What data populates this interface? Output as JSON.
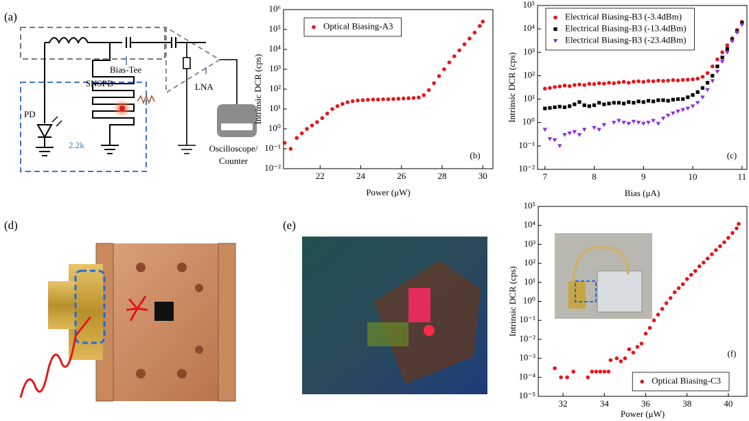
{
  "panel_labels": {
    "a": "(a)",
    "d": "(d)",
    "e": "(e)"
  },
  "diagram": {
    "bias_tee": "Bias-Tee",
    "snspd": "SNSPD",
    "pd": "PD",
    "resistor": "2.2k",
    "lna": "LNA",
    "scope": [
      "Oscilloscope/",
      "Counter"
    ]
  },
  "chart_data": [
    {
      "type": "scatter",
      "panel_label": "(b)",
      "x_label": "Power (μW)",
      "y_label": "Intrinsic DCR (cps)",
      "log_y": true,
      "legend": "upper left",
      "xlim": [
        20.2,
        30.5
      ],
      "xticks": [
        22,
        24,
        26,
        28,
        30
      ],
      "ylim": [
        0.01,
        1000000
      ],
      "yticks": [
        {
          "value": 0.01,
          "label": "10⁻²"
        },
        {
          "value": 0.1,
          "label": "10⁻¹"
        },
        {
          "value": 1,
          "label": "10⁰"
        },
        {
          "value": 10,
          "label": "10¹"
        },
        {
          "value": 100,
          "label": "10²"
        },
        {
          "value": 1000,
          "label": "10³"
        },
        {
          "value": 10000,
          "label": "10⁴"
        },
        {
          "value": 100000,
          "label": "10⁵"
        },
        {
          "value": 1000000,
          "label": "10⁶"
        }
      ],
      "x": [
        20.25,
        20.55,
        20.85,
        21.1,
        21.35,
        21.6,
        21.85,
        22.1,
        22.35,
        22.6,
        22.85,
        23.1,
        23.35,
        23.6,
        23.85,
        24.1,
        24.35,
        24.6,
        24.85,
        25.1,
        25.35,
        25.6,
        25.85,
        26.1,
        26.35,
        26.6,
        26.85,
        27.1,
        27.35,
        27.6,
        27.85,
        28.1,
        28.35,
        28.6,
        28.85,
        29.1,
        29.35,
        29.6,
        29.85,
        30
      ],
      "series": [
        {
          "name": "Optical Biasing-A3",
          "color": "#e8141a",
          "marker": "circle",
          "values": [
            0.2,
            0.1,
            0.35,
            0.6,
            1,
            1.5,
            2.2,
            3.5,
            6,
            10,
            14,
            18,
            22,
            25,
            27,
            28,
            29,
            30,
            30,
            31,
            31,
            32,
            33,
            34,
            35,
            36,
            38,
            50,
            90,
            200,
            450,
            1000,
            2200,
            4500,
            9000,
            18000,
            35000,
            70000,
            150000,
            250000
          ]
        }
      ]
    },
    {
      "type": "scatter",
      "panel_label": "(c)",
      "x_label": "Bias (μA)",
      "y_label": "Intrinsic DCR (cps)",
      "log_y": true,
      "legend": "upper left",
      "xlim": [
        6.85,
        11.1
      ],
      "xticks": [
        7,
        8,
        9,
        10,
        11
      ],
      "ylim": [
        0.01,
        100000
      ],
      "yticks": [
        {
          "value": 0.01,
          "label": "10⁻²"
        },
        {
          "value": 0.1,
          "label": "10⁻¹"
        },
        {
          "value": 1,
          "label": "10⁰"
        },
        {
          "value": 10,
          "label": "10¹"
        },
        {
          "value": 100,
          "label": "10²"
        },
        {
          "value": 1000,
          "label": "10³"
        },
        {
          "value": 10000,
          "label": "10⁴"
        },
        {
          "value": 100000,
          "label": "10⁵"
        }
      ],
      "x": [
        7.0,
        7.1,
        7.2,
        7.3,
        7.4,
        7.5,
        7.6,
        7.7,
        7.8,
        7.9,
        8.0,
        8.1,
        8.2,
        8.3,
        8.4,
        8.5,
        8.6,
        8.7,
        8.8,
        8.9,
        9.0,
        9.1,
        9.2,
        9.3,
        9.4,
        9.5,
        9.6,
        9.7,
        9.8,
        9.9,
        10.0,
        10.1,
        10.2,
        10.3,
        10.4,
        10.5,
        10.6,
        10.7,
        10.8,
        10.9,
        11.0
      ],
      "series": [
        {
          "name": "Electrical Biasing-B3 (-3.4dBm)",
          "color": "#e8141a",
          "marker": "circle",
          "values": [
            28,
            30,
            33,
            35,
            38,
            36,
            40,
            42,
            40,
            45,
            44,
            48,
            46,
            50,
            48,
            52,
            55,
            50,
            56,
            58,
            55,
            60,
            58,
            62,
            60,
            62,
            65,
            63,
            66,
            68,
            70,
            75,
            90,
            130,
            250,
            500,
            1000,
            2000,
            4000,
            9000,
            20000
          ]
        },
        {
          "name": "Electrical Biasing-B3 (-13.4dBm)",
          "color": "#000000",
          "marker": "square",
          "values": [
            4,
            4.2,
            4.5,
            4.8,
            4.5,
            5,
            6,
            7.5,
            5.5,
            5,
            5.5,
            7,
            6,
            6.5,
            7,
            7,
            6.5,
            7.5,
            7,
            8,
            7.5,
            8.5,
            8,
            9,
            9,
            8.5,
            9.5,
            10,
            10,
            12,
            15,
            20,
            30,
            50,
            100,
            250,
            600,
            1400,
            3500,
            8000,
            18000
          ]
        },
        {
          "name": "Electrical Biasing-B3 (-23.4dBm)",
          "color": "#8a2be2",
          "marker": "triangle-down",
          "values": [
            0.5,
            0.2,
            0.18,
            0.1,
            0.3,
            0.35,
            0.4,
            0.3,
            0.5,
            null,
            0.6,
            0.5,
            0.8,
            null,
            1,
            1.2,
            1,
            0.9,
            1.1,
            1,
            0.9,
            1,
            1.2,
            0.9,
            1.5,
            2,
            2.5,
            3,
            3.5,
            4,
            5,
            7,
            12,
            25,
            60,
            150,
            400,
            1000,
            3000,
            7000,
            15000
          ]
        }
      ]
    },
    {
      "type": "scatter",
      "panel_label": "(f)",
      "x_label": "Power (μW)",
      "y_label": "Intrinsic DCR (cps)",
      "log_y": true,
      "legend": "lower right",
      "xlim": [
        30.8,
        40.9
      ],
      "xticks": [
        32,
        34,
        36,
        38,
        40
      ],
      "ylim": [
        1e-05,
        100000
      ],
      "yticks": [
        {
          "value": 1e-05,
          "label": "10⁻⁵"
        },
        {
          "value": 0.0001,
          "label": "10⁻⁴"
        },
        {
          "value": 0.001,
          "label": "10⁻³"
        },
        {
          "value": 0.01,
          "label": "10⁻²"
        },
        {
          "value": 0.1,
          "label": "10⁻¹"
        },
        {
          "value": 1,
          "label": "10⁰"
        },
        {
          "value": 10,
          "label": "10¹"
        },
        {
          "value": 100,
          "label": "10²"
        },
        {
          "value": 1000,
          "label": "10³"
        },
        {
          "value": 10000,
          "label": "10⁴"
        },
        {
          "value": 100000,
          "label": "10⁵"
        }
      ],
      "x": [
        31.6,
        31.9,
        32.2,
        32.5,
        33.2,
        33.4,
        33.6,
        33.8,
        34.0,
        34.2,
        34.3,
        34.6,
        34.8,
        35.0,
        35.2,
        35.4,
        35.6,
        35.8,
        36.0,
        36.2,
        36.4,
        36.6,
        36.8,
        37.0,
        37.2,
        37.4,
        37.6,
        37.8,
        38.0,
        38.2,
        38.4,
        38.6,
        38.8,
        39.0,
        39.2,
        39.4,
        39.6,
        39.8,
        40.0,
        40.2,
        40.4,
        40.5
      ],
      "series": [
        {
          "name": "Optical Biasing-C3",
          "color": "#e8141a",
          "marker": "circle",
          "values": [
            0.0003,
            0.0001,
            0.0001,
            0.0002,
            0.0001,
            0.0002,
            0.0002,
            0.0002,
            0.0002,
            0.0002,
            0.0008,
            0.001,
            0.0007,
            0.001,
            0.003,
            0.002,
            0.004,
            0.006,
            0.02,
            0.04,
            0.1,
            0.2,
            0.4,
            0.8,
            1.5,
            3,
            5,
            8,
            15,
            25,
            40,
            70,
            110,
            180,
            300,
            500,
            800,
            1300,
            2200,
            4000,
            7000,
            12000
          ]
        }
      ]
    }
  ]
}
